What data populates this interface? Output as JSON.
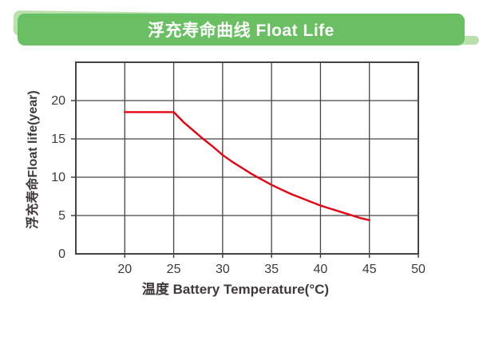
{
  "banner": {
    "title": "浮充寿命曲线 Float Life"
  },
  "chart_data": {
    "type": "line",
    "title": "浮充寿命曲线 Float Life",
    "xlabel": "温度 Battery Temperature(°C)",
    "ylabel": "浮充寿命Float life(year)",
    "xlim": [
      15,
      50
    ],
    "ylim": [
      0,
      25
    ],
    "x_tick_labels": [
      20,
      25,
      30,
      35,
      40,
      45,
      50
    ],
    "y_tick_labels": [
      0,
      5,
      10,
      15,
      20
    ],
    "grid": true,
    "grid_step": 5,
    "legend": "none",
    "series": [
      {
        "name": "Float Life",
        "color": "#e60012",
        "x": [
          20,
          25,
          26,
          27,
          28,
          29,
          30,
          31,
          32,
          33,
          34,
          35,
          36,
          37,
          38,
          39,
          40,
          41,
          42,
          43,
          44,
          45
        ],
        "y": [
          18.5,
          18.5,
          17.2,
          16.1,
          15.0,
          14.0,
          12.9,
          12.0,
          11.2,
          10.4,
          9.7,
          9.0,
          8.4,
          7.8,
          7.3,
          6.8,
          6.3,
          5.9,
          5.5,
          5.1,
          4.7,
          4.4
        ]
      }
    ]
  },
  "colors": {
    "banner_bg": "#6abf62",
    "banner_accent": "#b9e0ad",
    "banner_text": "#ffffff",
    "grid": "#474341",
    "axis_text": "#3e3a39",
    "curve": "#e60012"
  }
}
